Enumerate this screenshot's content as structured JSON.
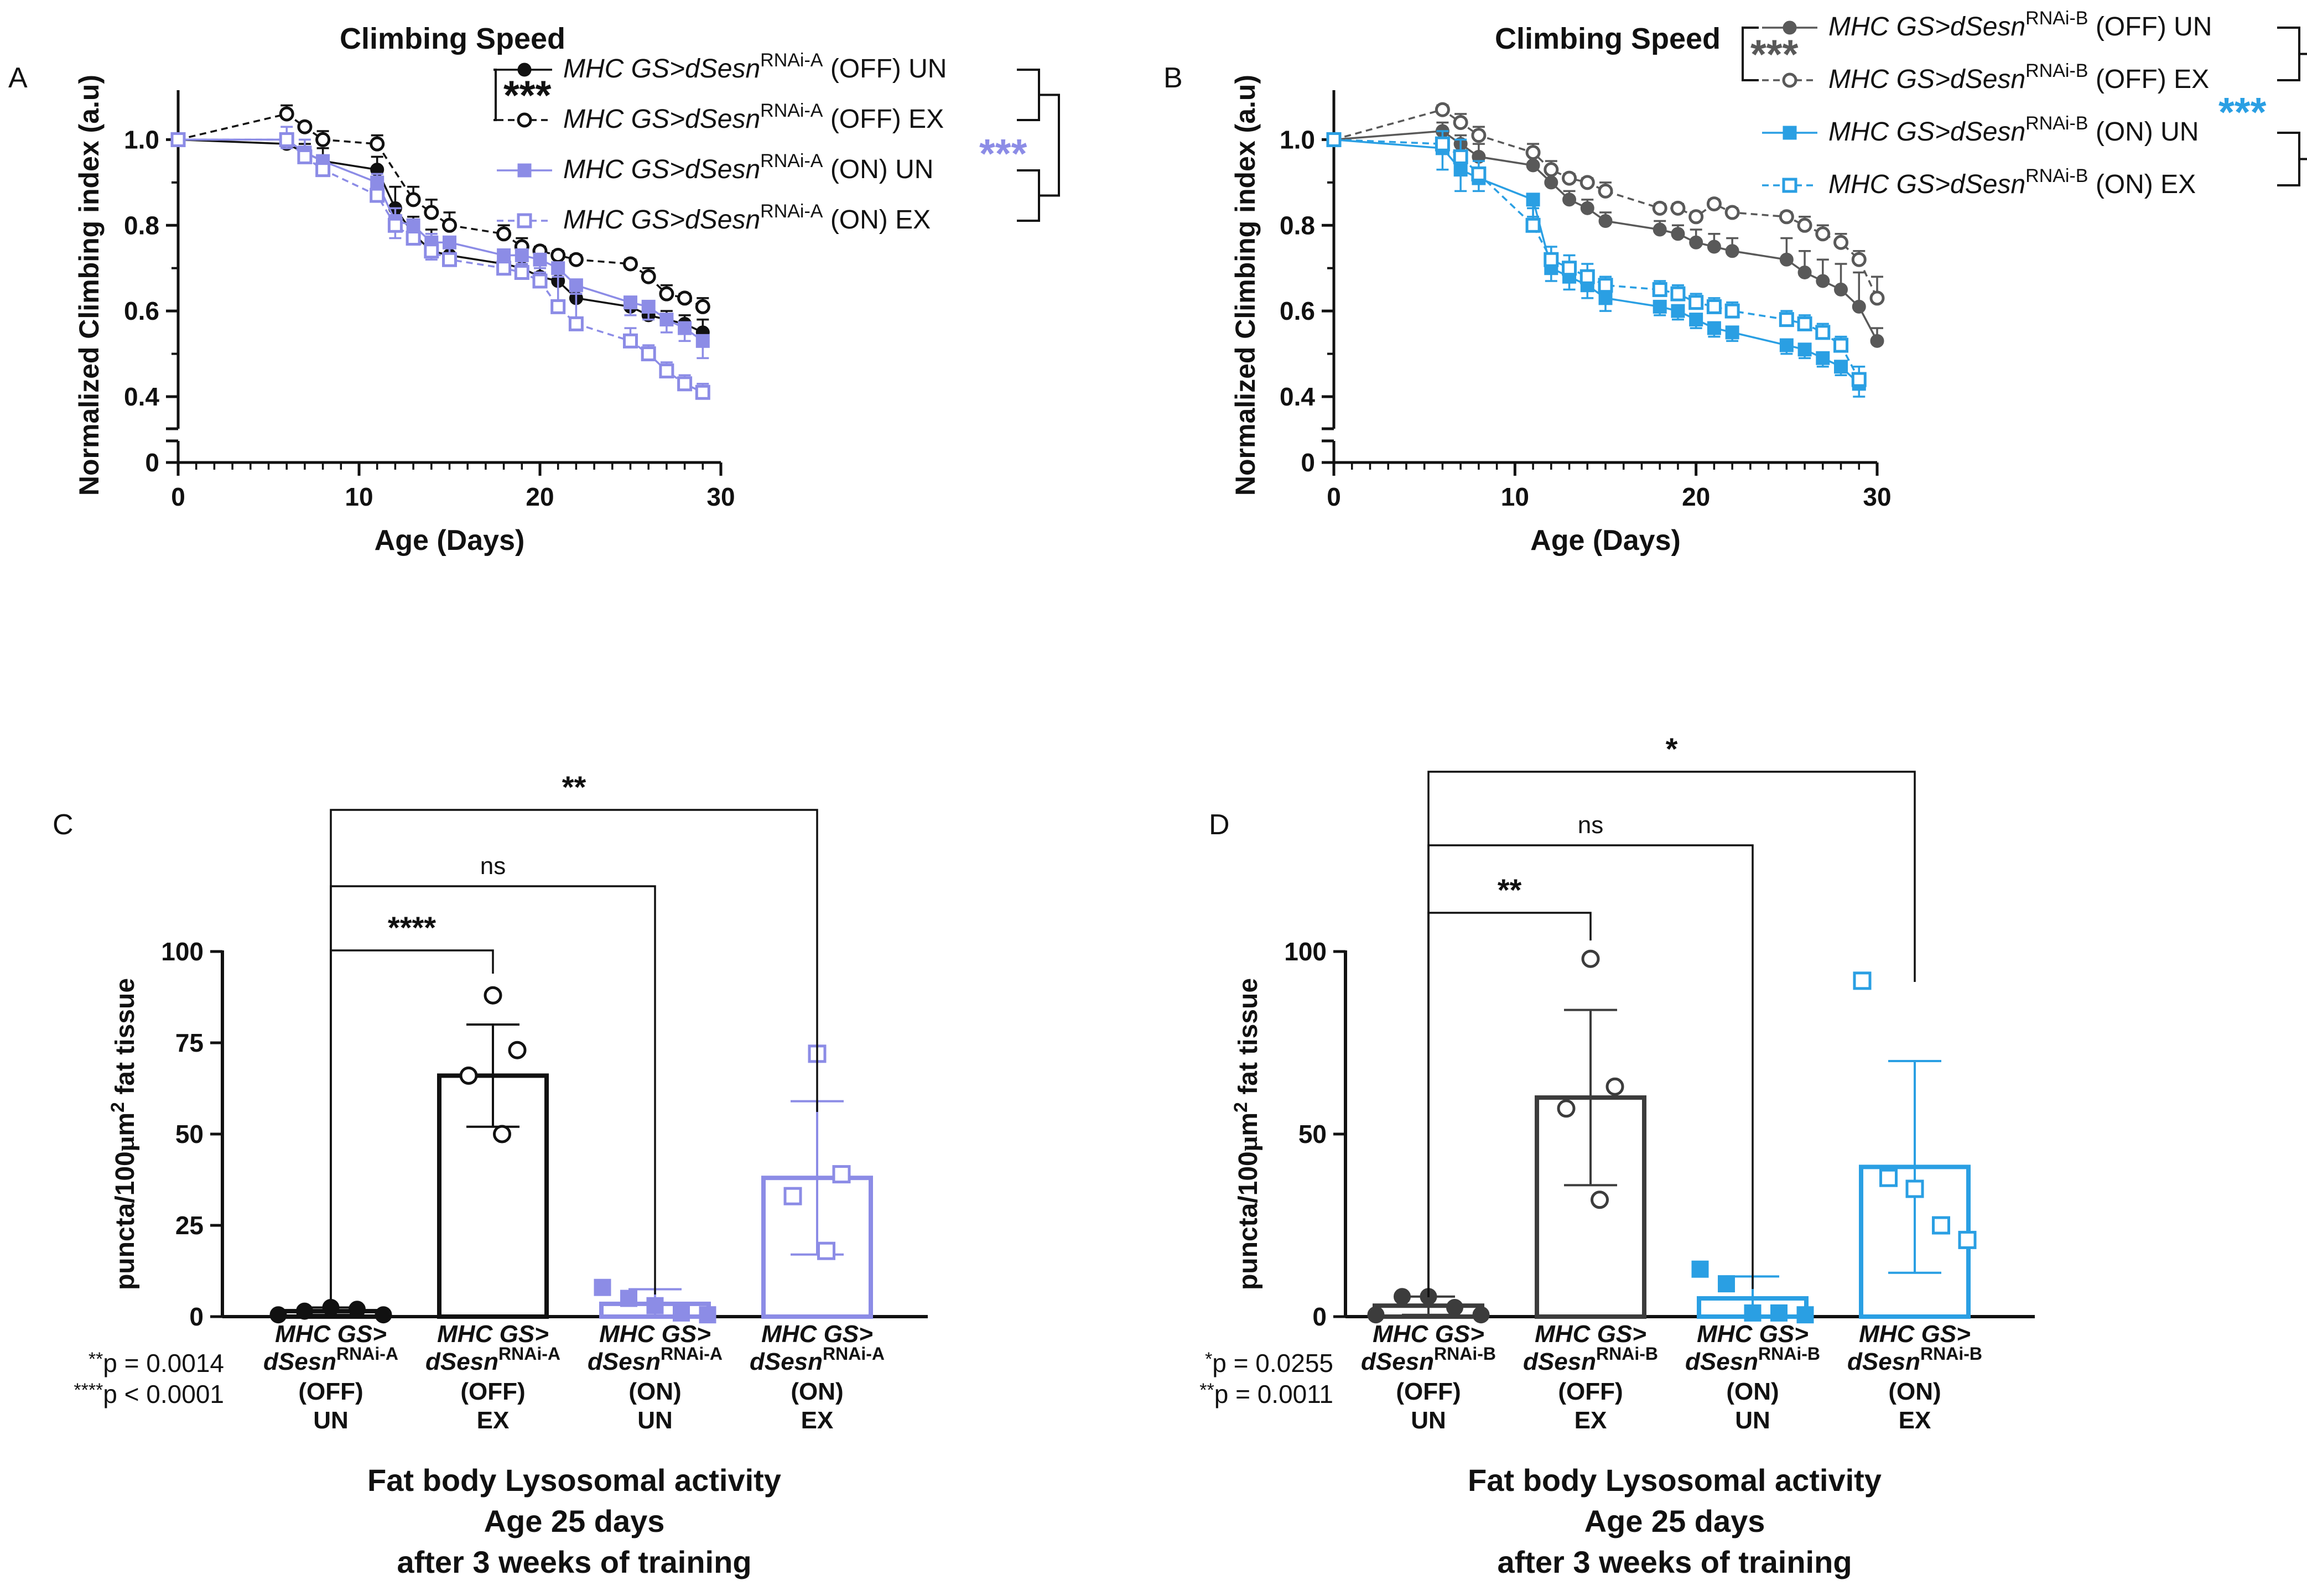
{
  "colors": {
    "black": "#111111",
    "darkgray": "#3c3c3c",
    "gray": "#595959",
    "purple": "#8c8ce6",
    "blue": "#2a9fe3"
  },
  "chart_data": [
    {
      "panel": "A",
      "type": "line",
      "title": "Climbing Speed",
      "xlabel": "Age (Days)",
      "ylabel": "Normalized Climbing index (a.u)",
      "xlim": [
        0,
        30
      ],
      "ylim": [
        0.4,
        1.1
      ],
      "ybreak_bottom": 0,
      "xticks": [
        "0",
        "10",
        "20",
        "30"
      ],
      "yticks": [
        "0.4",
        "0.6",
        "0.8",
        "1.0"
      ],
      "ybreak_tick": "0",
      "grid": false,
      "legend_position": "top-right",
      "significance": [
        {
          "label": "***",
          "between": "OFF UN vs OFF EX",
          "color": "black"
        },
        {
          "label": "***",
          "between": "ON UN vs ON EX",
          "color": "purple"
        }
      ],
      "series": [
        {
          "legend": {
            "prefix": "MHC GS>dSesn",
            "sup": "RNAi-A",
            "suffix": " (OFF) UN"
          },
          "color": "black",
          "marker": "filled-circle",
          "dashed": false,
          "x": [
            0,
            6,
            7,
            8,
            11,
            12,
            13,
            14,
            15,
            18,
            19,
            20,
            21,
            22,
            25,
            26,
            27,
            28,
            29
          ],
          "y": [
            1.0,
            0.99,
            0.97,
            0.95,
            0.93,
            0.84,
            0.78,
            0.74,
            0.73,
            0.71,
            0.7,
            0.68,
            0.67,
            0.63,
            0.61,
            0.59,
            0.58,
            0.57,
            0.55
          ],
          "err": [
            0,
            0.02,
            0.02,
            0.03,
            0.03,
            0.05,
            0.04,
            0.05,
            0.04,
            0.02,
            0.02,
            0.02,
            0.02,
            0.02,
            0.02,
            0.02,
            0.02,
            0.02,
            0.03
          ]
        },
        {
          "legend": {
            "prefix": "MHC GS>dSesn",
            "sup": "RNAi-A",
            "suffix": " (OFF) EX"
          },
          "color": "black",
          "marker": "open-circle",
          "dashed": true,
          "x": [
            0,
            6,
            7,
            8,
            11,
            13,
            14,
            15,
            18,
            19,
            20,
            21,
            22,
            25,
            26,
            27,
            28,
            29
          ],
          "y": [
            1.0,
            1.06,
            1.03,
            1.0,
            0.99,
            0.86,
            0.83,
            0.8,
            0.78,
            0.75,
            0.74,
            0.73,
            0.72,
            0.71,
            0.68,
            0.64,
            0.63,
            0.61
          ],
          "err": [
            0,
            0.02,
            0.01,
            0.02,
            0.02,
            0.03,
            0.03,
            0.03,
            0.02,
            0.02,
            0.01,
            0.01,
            0.01,
            0.01,
            0.02,
            0.02,
            0.01,
            0.02
          ]
        },
        {
          "legend": {
            "prefix": "MHC GS>dSesn",
            "sup": "RNAi-A",
            "suffix": " (ON) UN"
          },
          "color": "purple",
          "marker": "filled-square",
          "dashed": false,
          "x": [
            0,
            6,
            7,
            8,
            11,
            12,
            13,
            14,
            15,
            18,
            19,
            20,
            21,
            22,
            25,
            26,
            27,
            28,
            29
          ],
          "y": [
            1.0,
            1.0,
            0.97,
            0.95,
            0.9,
            0.81,
            0.8,
            0.76,
            0.76,
            0.73,
            0.73,
            0.72,
            0.7,
            0.66,
            0.62,
            0.61,
            0.58,
            0.56,
            0.53
          ],
          "err": [
            0,
            0.02,
            0.02,
            0.03,
            0.04,
            0.04,
            0.03,
            0.04,
            0.03,
            0.02,
            0.02,
            0.02,
            0.02,
            0.02,
            0.03,
            0.03,
            0.03,
            0.03,
            0.04
          ]
        },
        {
          "legend": {
            "prefix": "MHC GS>dSesn",
            "sup": "RNAi-A",
            "suffix": " (ON) EX"
          },
          "color": "purple",
          "marker": "open-square",
          "dashed": true,
          "x": [
            0,
            6,
            7,
            8,
            11,
            12,
            13,
            14,
            15,
            18,
            19,
            20,
            21,
            22,
            25,
            26,
            27,
            28,
            29
          ],
          "y": [
            1.0,
            1.0,
            0.96,
            0.93,
            0.87,
            0.8,
            0.77,
            0.74,
            0.72,
            0.7,
            0.69,
            0.67,
            0.61,
            0.57,
            0.53,
            0.5,
            0.46,
            0.43,
            0.41
          ],
          "err": [
            0,
            0.03,
            0.04,
            0.03,
            0.05,
            0.04,
            0.03,
            0.04,
            0.03,
            0.02,
            0.02,
            0.02,
            0.07,
            0.07,
            0.03,
            0.02,
            0.02,
            0.02,
            0.02
          ]
        }
      ]
    },
    {
      "panel": "B",
      "type": "line",
      "title": "Climbing Speed",
      "xlabel": "Age (Days)",
      "ylabel": "Normalized Climbing index (a.u)",
      "xlim": [
        0,
        30
      ],
      "ylim": [
        0.4,
        1.1
      ],
      "ybreak_bottom": 0,
      "xticks": [
        "0",
        "10",
        "20",
        "30"
      ],
      "yticks": [
        "0.4",
        "0.6",
        "0.8",
        "1.0"
      ],
      "ybreak_tick": "0",
      "grid": false,
      "legend_position": "top-right",
      "significance": [
        {
          "label": "***",
          "between": "OFF UN vs OFF EX",
          "color": "gray"
        },
        {
          "label": "***",
          "between": "ON UN vs ON EX",
          "color": "blue"
        }
      ],
      "series": [
        {
          "legend": {
            "prefix": "MHC GS>dSesn",
            "sup": "RNAi-B",
            "suffix": " (OFF) UN"
          },
          "color": "gray",
          "marker": "filled-circle",
          "dashed": false,
          "x": [
            0,
            6,
            7,
            8,
            11,
            12,
            13,
            14,
            15,
            18,
            19,
            20,
            21,
            22,
            25,
            26,
            27,
            28,
            29,
            30
          ],
          "y": [
            1.0,
            1.02,
            0.99,
            0.96,
            0.94,
            0.9,
            0.86,
            0.84,
            0.81,
            0.79,
            0.78,
            0.76,
            0.75,
            0.74,
            0.72,
            0.69,
            0.67,
            0.65,
            0.61,
            0.53
          ],
          "err": [
            0,
            0.02,
            0.02,
            0.03,
            0.03,
            0.03,
            0.02,
            0.02,
            0.02,
            0.02,
            0.02,
            0.03,
            0.03,
            0.03,
            0.05,
            0.05,
            0.05,
            0.06,
            0.08,
            0.03
          ]
        },
        {
          "legend": {
            "prefix": "MHC GS>dSesn",
            "sup": "RNAi-B",
            "suffix": " (OFF) EX"
          },
          "color": "gray",
          "marker": "open-circle",
          "dashed": true,
          "x": [
            0,
            6,
            7,
            8,
            11,
            12,
            13,
            14,
            15,
            18,
            19,
            20,
            21,
            22,
            25,
            26,
            27,
            28,
            29,
            30
          ],
          "y": [
            1.0,
            1.07,
            1.04,
            1.01,
            0.97,
            0.93,
            0.91,
            0.9,
            0.88,
            0.84,
            0.84,
            0.82,
            0.85,
            0.83,
            0.82,
            0.8,
            0.78,
            0.76,
            0.72,
            0.63
          ],
          "err": [
            0,
            0.01,
            0.02,
            0.02,
            0.02,
            0.02,
            0.01,
            0.01,
            0.02,
            0.01,
            0.01,
            0.01,
            0.01,
            0.01,
            0.01,
            0.02,
            0.02,
            0.02,
            0.02,
            0.05
          ]
        },
        {
          "legend": {
            "prefix": "MHC GS>dSesn",
            "sup": "RNAi-B",
            "suffix": " (ON) UN"
          },
          "color": "blue",
          "marker": "filled-square",
          "dashed": false,
          "x": [
            0,
            6,
            7,
            8,
            11,
            12,
            13,
            14,
            15,
            18,
            19,
            20,
            21,
            22,
            25,
            26,
            27,
            28,
            29
          ],
          "y": [
            1.0,
            0.98,
            0.93,
            0.91,
            0.86,
            0.7,
            0.68,
            0.66,
            0.63,
            0.61,
            0.6,
            0.58,
            0.56,
            0.55,
            0.52,
            0.51,
            0.49,
            0.47,
            0.43
          ],
          "err": [
            0,
            0.05,
            0.05,
            0.03,
            0.04,
            0.03,
            0.03,
            0.03,
            0.03,
            0.02,
            0.02,
            0.02,
            0.02,
            0.02,
            0.02,
            0.02,
            0.02,
            0.02,
            0.03
          ]
        },
        {
          "legend": {
            "prefix": "MHC GS>dSesn",
            "sup": "RNAi-B",
            "suffix": " (ON) EX"
          },
          "color": "blue",
          "marker": "open-square",
          "dashed": true,
          "x": [
            0,
            6,
            7,
            8,
            11,
            12,
            13,
            14,
            15,
            18,
            19,
            20,
            21,
            22,
            25,
            26,
            27,
            28,
            29
          ],
          "y": [
            1.0,
            0.99,
            0.96,
            0.92,
            0.8,
            0.72,
            0.7,
            0.68,
            0.66,
            0.65,
            0.64,
            0.62,
            0.61,
            0.6,
            0.58,
            0.57,
            0.55,
            0.52,
            0.44
          ],
          "err": [
            0,
            0.03,
            0.04,
            0.03,
            0.04,
            0.03,
            0.03,
            0.03,
            0.02,
            0.02,
            0.02,
            0.02,
            0.02,
            0.02,
            0.02,
            0.02,
            0.02,
            0.02,
            0.03
          ]
        }
      ]
    },
    {
      "panel": "C",
      "type": "bar",
      "ylabel": {
        "prefix": "puncta/100",
        "mu": "µ",
        "m": "m",
        "sup": "2",
        "suffix": " fat tissue"
      },
      "ylim": [
        0,
        100
      ],
      "yticks": [
        "0",
        "25",
        "50",
        "75",
        "100"
      ],
      "grid": false,
      "categories": [
        {
          "l1": "MHC GS>",
          "l2": "dSesn",
          "sup": "RNAi-A",
          "l3": "(OFF)",
          "l4": "UN"
        },
        {
          "l1": "MHC GS>",
          "l2": "dSesn",
          "sup": "RNAi-A",
          "l3": "(OFF)",
          "l4": "EX"
        },
        {
          "l1": "MHC GS>",
          "l2": "dSesn",
          "sup": "RNAi-A",
          "l3": "(ON)",
          "l4": "UN"
        },
        {
          "l1": "MHC GS>",
          "l2": "dSesn",
          "sup": "RNAi-A",
          "l3": "(ON)",
          "l4": "EX"
        }
      ],
      "values": [
        1.5,
        66,
        3.5,
        38
      ],
      "sd": [
        1,
        14,
        4,
        21
      ],
      "points": [
        [
          0.5,
          1.5,
          2.5,
          2,
          0.5
        ],
        [
          88,
          73,
          66,
          50
        ],
        [
          8,
          5,
          3,
          1,
          0.5
        ],
        [
          72,
          39,
          33,
          18
        ]
      ],
      "bar_colors": [
        "black",
        "black",
        "purple",
        "purple"
      ],
      "markers": [
        "filled-circle",
        "open-circle",
        "filled-square",
        "open-square"
      ],
      "brackets": [
        {
          "from": 0,
          "to": 3,
          "label": "**"
        },
        {
          "from": 0,
          "to": 2,
          "label": "ns"
        },
        {
          "from": 0,
          "to": 1,
          "label": "****"
        }
      ],
      "pvalues": [
        {
          "stars": "**",
          "text": "p = 0.0014"
        },
        {
          "stars": "****",
          "text": "p < 0.0001"
        }
      ],
      "caption": [
        "Fat body Lysosomal activity",
        "Age 25 days",
        "after 3 weeks of training"
      ]
    },
    {
      "panel": "D",
      "type": "bar",
      "ylabel": {
        "prefix": "puncta/100",
        "mu": "µ",
        "m": "m",
        "sup": "2",
        "suffix": " fat tissue"
      },
      "ylim": [
        0,
        100
      ],
      "yticks": [
        "0",
        "50",
        "100"
      ],
      "grid": false,
      "categories": [
        {
          "l1": "MHC GS>",
          "l2": "dSesn",
          "sup": "RNAi-B",
          "l3": "(OFF)",
          "l4": "UN"
        },
        {
          "l1": "MHC GS>",
          "l2": "dSesn",
          "sup": "RNAi-B",
          "l3": "(OFF)",
          "l4": "EX"
        },
        {
          "l1": "MHC GS>",
          "l2": "dSesn",
          "sup": "RNAi-B",
          "l3": "(ON)",
          "l4": "UN"
        },
        {
          "l1": "MHC GS>",
          "l2": "dSesn",
          "sup": "RNAi-B",
          "l3": "(ON)",
          "l4": "EX"
        }
      ],
      "values": [
        3,
        60,
        5,
        41
      ],
      "sd": [
        2.5,
        24,
        6,
        29
      ],
      "points": [
        [
          0.5,
          5.5,
          5.5,
          2.5,
          0.5
        ],
        [
          98,
          63,
          57,
          32
        ],
        [
          13,
          9,
          1,
          1,
          0.5
        ],
        [
          92,
          38,
          35,
          25,
          21
        ]
      ],
      "bar_colors": [
        "darkgray",
        "darkgray",
        "blue",
        "blue"
      ],
      "markers": [
        "filled-circle",
        "open-circle",
        "filled-square",
        "open-square"
      ],
      "brackets": [
        {
          "from": 0,
          "to": 3,
          "label": "*"
        },
        {
          "from": 0,
          "to": 2,
          "label": "ns"
        },
        {
          "from": 0,
          "to": 1,
          "label": "**"
        }
      ],
      "pvalues": [
        {
          "stars": "*",
          "text": "p = 0.0255"
        },
        {
          "stars": "**",
          "text": "p = 0.0011"
        }
      ],
      "caption": [
        "Fat body Lysosomal activity",
        "Age 25 days",
        "after 3 weeks of training"
      ]
    }
  ]
}
